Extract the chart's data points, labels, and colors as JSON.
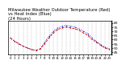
{
  "title": "Milwaukee Weather Outdoor Temperature (Red)\nvs Heat Index (Blue)\n(24 Hours)",
  "title_fontsize": 3.8,
  "background_color": "#ffffff",
  "grid_color": "#999999",
  "x_hours": [
    0,
    1,
    2,
    3,
    4,
    5,
    6,
    7,
    8,
    9,
    10,
    11,
    12,
    13,
    14,
    15,
    16,
    17,
    18,
    19,
    20,
    21,
    22,
    23
  ],
  "temp_red": [
    62,
    58,
    55,
    52,
    50,
    48,
    47,
    49,
    55,
    62,
    68,
    72,
    74,
    75,
    74,
    73,
    71,
    68,
    65,
    60,
    57,
    53,
    50,
    48
  ],
  "heat_blue": [
    62,
    58,
    55,
    52,
    50,
    48,
    47,
    49,
    57,
    64,
    70,
    74,
    76,
    77,
    76,
    75,
    73,
    70,
    67,
    62,
    58,
    54,
    51,
    49
  ],
  "red_color": "#cc0000",
  "blue_color": "#0000cc",
  "ylim": [
    42,
    82
  ],
  "ytick_values": [
    45,
    50,
    55,
    60,
    65,
    70,
    75,
    80
  ],
  "ytick_labels": [
    "45",
    "50",
    "55",
    "60",
    "65",
    "70",
    "75",
    "80"
  ],
  "ylabel_fontsize": 3.2,
  "xlabel_fontsize": 2.8,
  "figwidth": 1.6,
  "figheight": 0.87,
  "dpi": 100
}
